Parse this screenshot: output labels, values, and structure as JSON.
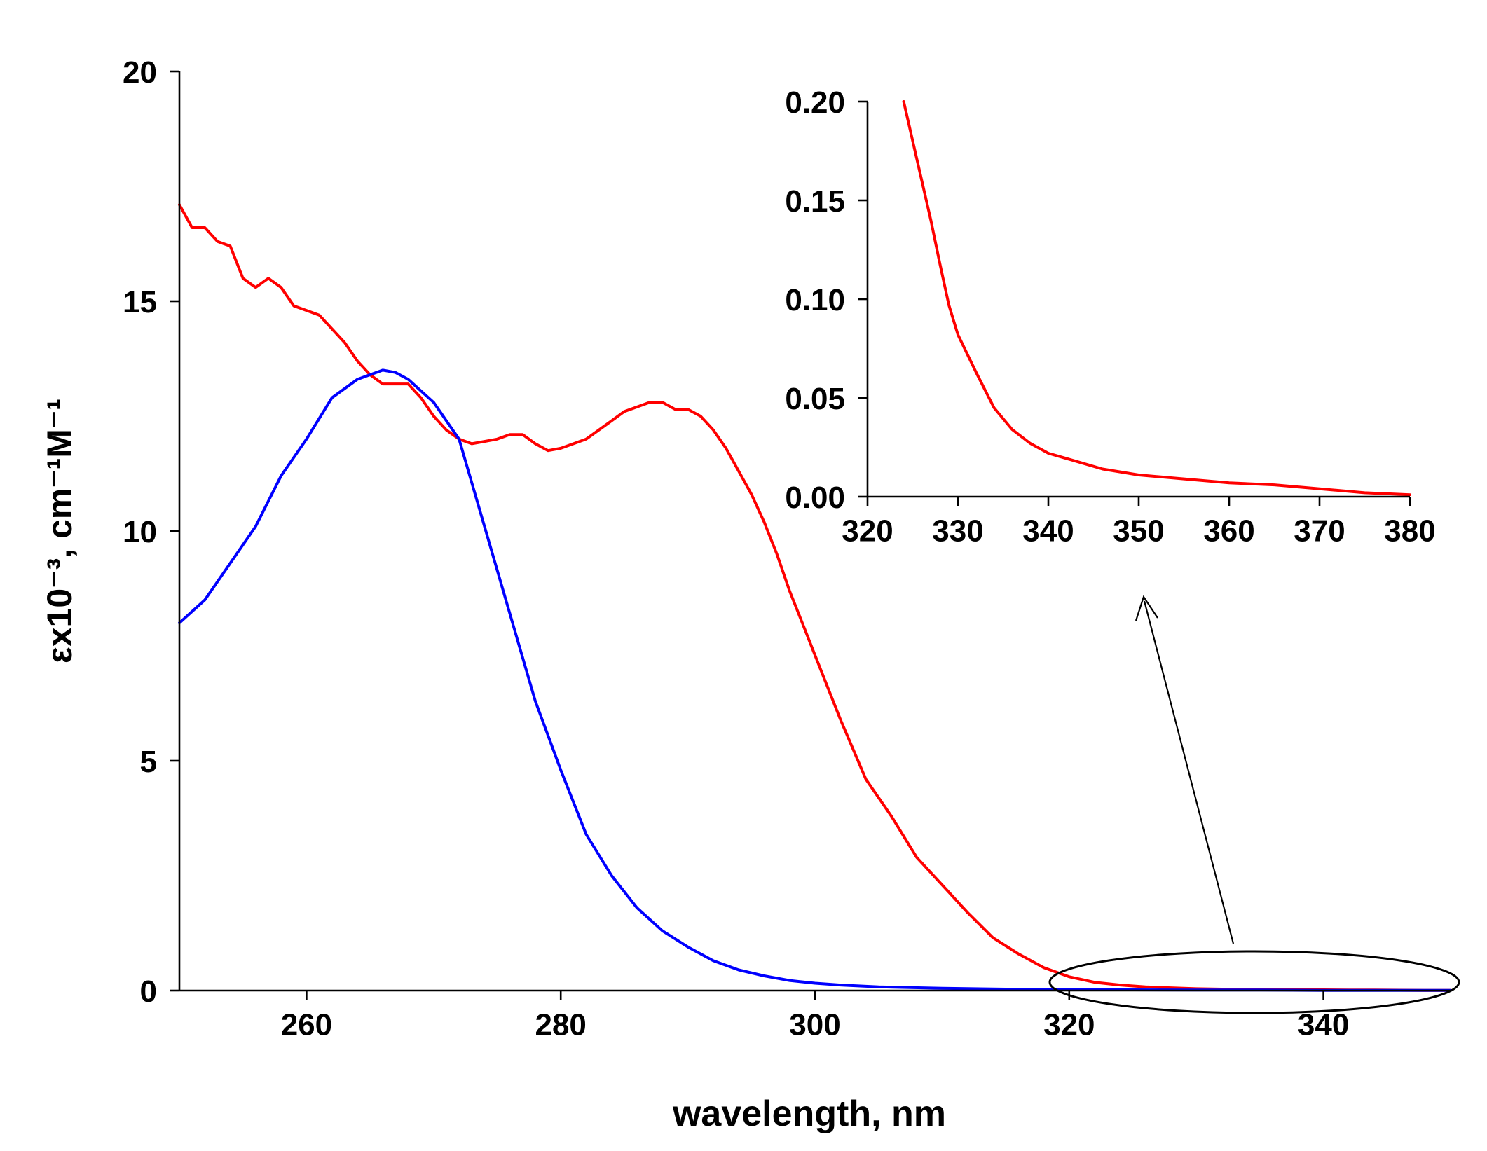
{
  "chart_data": [
    {
      "type": "line",
      "xlabel": "wavelength, nm",
      "ylabel": "εx10⁻³, cm⁻¹M⁻¹",
      "xlim": [
        250,
        350
      ],
      "ylim": [
        0,
        20
      ],
      "xticks": [
        260,
        280,
        300,
        320,
        340
      ],
      "yticks": [
        0,
        5,
        10,
        15,
        20
      ],
      "series": [
        {
          "name": "red",
          "color": "#ff0000",
          "x": [
            250,
            251,
            252,
            253,
            254,
            255,
            256,
            257,
            258,
            259,
            260,
            261,
            262,
            263,
            264,
            265,
            266,
            267,
            268,
            269,
            270,
            271,
            272,
            273,
            274,
            275,
            276,
            277,
            278,
            279,
            280,
            281,
            282,
            283,
            284,
            285,
            286,
            287,
            288,
            289,
            290,
            291,
            292,
            293,
            294,
            295,
            296,
            297,
            298,
            299,
            300,
            302,
            304,
            306,
            308,
            310,
            312,
            314,
            316,
            318,
            320,
            322,
            324,
            326,
            328,
            330,
            332,
            334,
            336,
            338,
            340,
            342,
            344,
            346,
            348,
            350
          ],
          "y": [
            17.1,
            16.6,
            16.6,
            16.3,
            16.2,
            15.5,
            15.3,
            15.5,
            15.3,
            14.9,
            14.8,
            14.7,
            14.4,
            14.1,
            13.7,
            13.4,
            13.2,
            13.2,
            13.2,
            12.9,
            12.5,
            12.2,
            12.0,
            11.9,
            11.95,
            12.0,
            12.1,
            12.1,
            11.9,
            11.75,
            11.8,
            11.9,
            12.0,
            12.2,
            12.4,
            12.6,
            12.7,
            12.8,
            12.8,
            12.65,
            12.65,
            12.5,
            12.2,
            11.8,
            11.3,
            10.8,
            10.2,
            9.5,
            8.7,
            8.0,
            7.3,
            5.9,
            4.6,
            3.8,
            2.9,
            2.3,
            1.7,
            1.15,
            0.8,
            0.5,
            0.3,
            0.18,
            0.12,
            0.08,
            0.06,
            0.04,
            0.03,
            0.03,
            0.025,
            0.02,
            0.015,
            0.01,
            0.01,
            0.008,
            0.005,
            0.005
          ]
        },
        {
          "name": "blue",
          "color": "#0000ff",
          "x": [
            250,
            252,
            254,
            256,
            258,
            260,
            262,
            264,
            266,
            267,
            268,
            270,
            272,
            274,
            276,
            278,
            280,
            282,
            284,
            286,
            288,
            290,
            292,
            294,
            296,
            298,
            300,
            302,
            305,
            310,
            315,
            320,
            325,
            330,
            335,
            340,
            345,
            350
          ],
          "y": [
            8.0,
            8.5,
            9.3,
            10.1,
            11.2,
            12.0,
            12.9,
            13.3,
            13.5,
            13.45,
            13.3,
            12.8,
            12.0,
            10.1,
            8.2,
            6.3,
            4.8,
            3.4,
            2.5,
            1.8,
            1.3,
            0.95,
            0.65,
            0.45,
            0.32,
            0.22,
            0.16,
            0.12,
            0.08,
            0.05,
            0.03,
            0.02,
            0.015,
            0.01,
            0.01,
            0.005,
            0.005,
            0.005
          ]
        }
      ]
    },
    {
      "type": "line",
      "xlabel": "",
      "ylabel": "",
      "xlim": [
        320,
        380
      ],
      "ylim": [
        0,
        0.2
      ],
      "xticks": [
        320,
        330,
        340,
        350,
        360,
        370,
        380
      ],
      "yticks": [
        0.0,
        0.05,
        0.1,
        0.15,
        0.2
      ],
      "ytick_labels": [
        "0.00",
        "0.05",
        "0.10",
        "0.15",
        "0.20"
      ],
      "series": [
        {
          "name": "red-inset",
          "color": "#ff0000",
          "x": [
            324,
            325,
            326,
            327,
            328,
            329,
            330,
            332,
            334,
            336,
            338,
            340,
            343,
            346,
            350,
            355,
            360,
            365,
            370,
            375,
            380
          ],
          "y": [
            0.2,
            0.18,
            0.16,
            0.14,
            0.118,
            0.097,
            0.082,
            0.063,
            0.045,
            0.034,
            0.027,
            0.022,
            0.018,
            0.014,
            0.011,
            0.009,
            0.007,
            0.006,
            0.004,
            0.002,
            0.001
          ]
        }
      ]
    }
  ]
}
